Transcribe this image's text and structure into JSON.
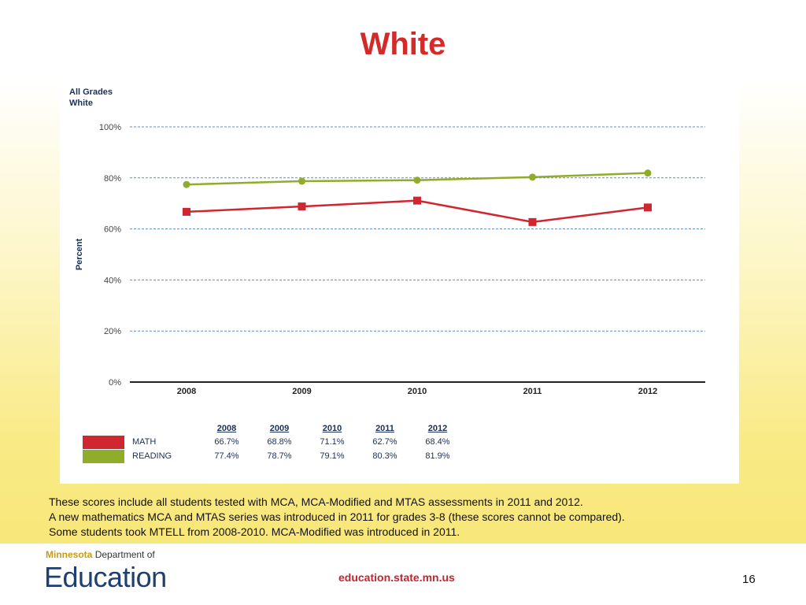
{
  "slide": {
    "title": "White",
    "chart_subtitle_line1": "All Grades",
    "chart_subtitle_line2": "White",
    "notes": [
      "These scores include all students tested with MCA, MCA-Modified and MTAS assessments in 2011 and 2012.",
      "A new mathematics MCA and MTAS series was introduced in 2011 for grades 3-8 (these scores cannot be compared).",
      "Some students took MTELL from 2008-2010.  MCA-Modified was introduced in 2011."
    ],
    "footer": {
      "logo_top_bold": "Minnesota",
      "logo_top_rest": "Department of",
      "logo_main": "Education",
      "url": "education.state.mn.us",
      "page_number": "16"
    },
    "colors": {
      "math": "#d0262f",
      "reading": "#8fac2a",
      "title": "#d42a2a"
    }
  },
  "chart_data": {
    "type": "line",
    "title": "All Grades White",
    "ylabel": "Percent",
    "xlabel": "",
    "ylim": [
      0,
      100
    ],
    "yticks": [
      "0%",
      "20%",
      "40%",
      "60%",
      "80%",
      "100%"
    ],
    "categories": [
      "2008",
      "2009",
      "2010",
      "2011",
      "2012"
    ],
    "grid": true,
    "series": [
      {
        "name": "MATH",
        "color": "#d0262f",
        "marker": "square",
        "values": [
          66.7,
          68.8,
          71.1,
          62.7,
          68.4
        ],
        "labels": [
          "66.7%",
          "68.8%",
          "71.1%",
          "62.7%",
          "68.4%"
        ]
      },
      {
        "name": "READING",
        "color": "#8fac2a",
        "marker": "circle",
        "values": [
          77.4,
          78.7,
          79.1,
          80.3,
          81.9
        ],
        "labels": [
          "77.4%",
          "78.7%",
          "79.1%",
          "80.3%",
          "81.9%"
        ]
      }
    ]
  }
}
